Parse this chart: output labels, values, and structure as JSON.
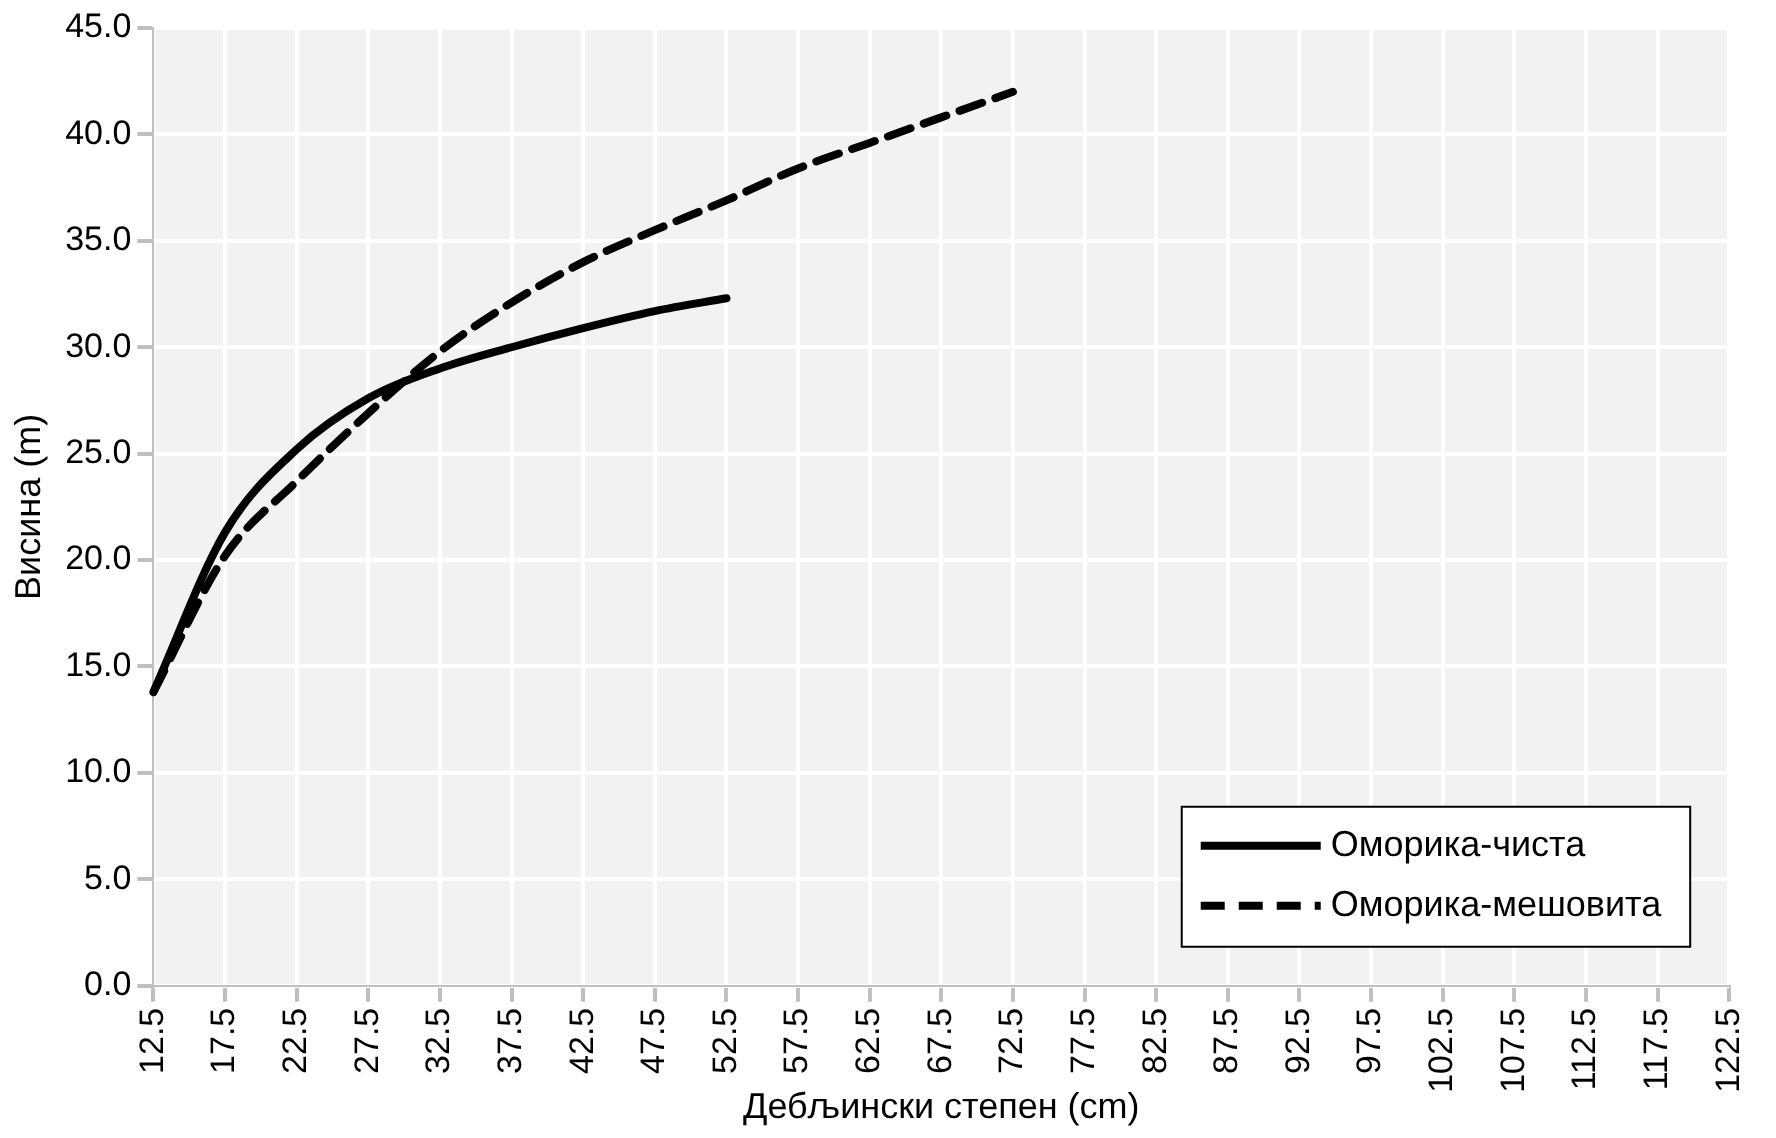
{
  "chart_data": {
    "type": "line",
    "xlabel": "Дебљински степен (cm)",
    "ylabel": "Висина (m)",
    "categories": [
      "12.5",
      "17.5",
      "22.5",
      "27.5",
      "32.5",
      "37.5",
      "42.5",
      "47.5",
      "52.5",
      "57.5",
      "62.5",
      "67.5",
      "72.5",
      "77.5",
      "82.5",
      "87.5",
      "92.5",
      "97.5",
      "102.5",
      "107.5",
      "112.5",
      "117.5",
      "122.5"
    ],
    "series": [
      {
        "name": "Оморика-чиста",
        "color": "#000000",
        "line_style": "solid",
        "values": [
          13.8,
          21.3,
          25.2,
          27.6,
          29.0,
          30.0,
          30.9,
          31.7,
          32.3,
          null,
          null,
          null,
          null,
          null,
          null,
          null,
          null,
          null,
          null,
          null,
          null,
          null,
          null
        ]
      },
      {
        "name": "Оморика-мешовита",
        "color": "#000000",
        "line_style": "dashed",
        "values": [
          13.8,
          20.2,
          23.7,
          26.9,
          29.8,
          32.1,
          34.0,
          35.5,
          36.9,
          38.4,
          39.6,
          40.8,
          42.0,
          null,
          null,
          null,
          null,
          null,
          null,
          null,
          null,
          null,
          null
        ]
      }
    ],
    "ylim": [
      0,
      45
    ],
    "yticks": [
      {
        "value": 0,
        "label": "0.0"
      },
      {
        "value": 5,
        "label": "5.0"
      },
      {
        "value": 10,
        "label": "10.0"
      },
      {
        "value": 15,
        "label": "15.0"
      },
      {
        "value": 20,
        "label": "20.0"
      },
      {
        "value": 25,
        "label": "25.0"
      },
      {
        "value": 30,
        "label": "30.0"
      },
      {
        "value": 35,
        "label": "35.0"
      },
      {
        "value": 40,
        "label": "40.0"
      },
      {
        "value": 45,
        "label": "45.0"
      }
    ],
    "grid": true,
    "legend": "bottom right",
    "marker": "none"
  }
}
